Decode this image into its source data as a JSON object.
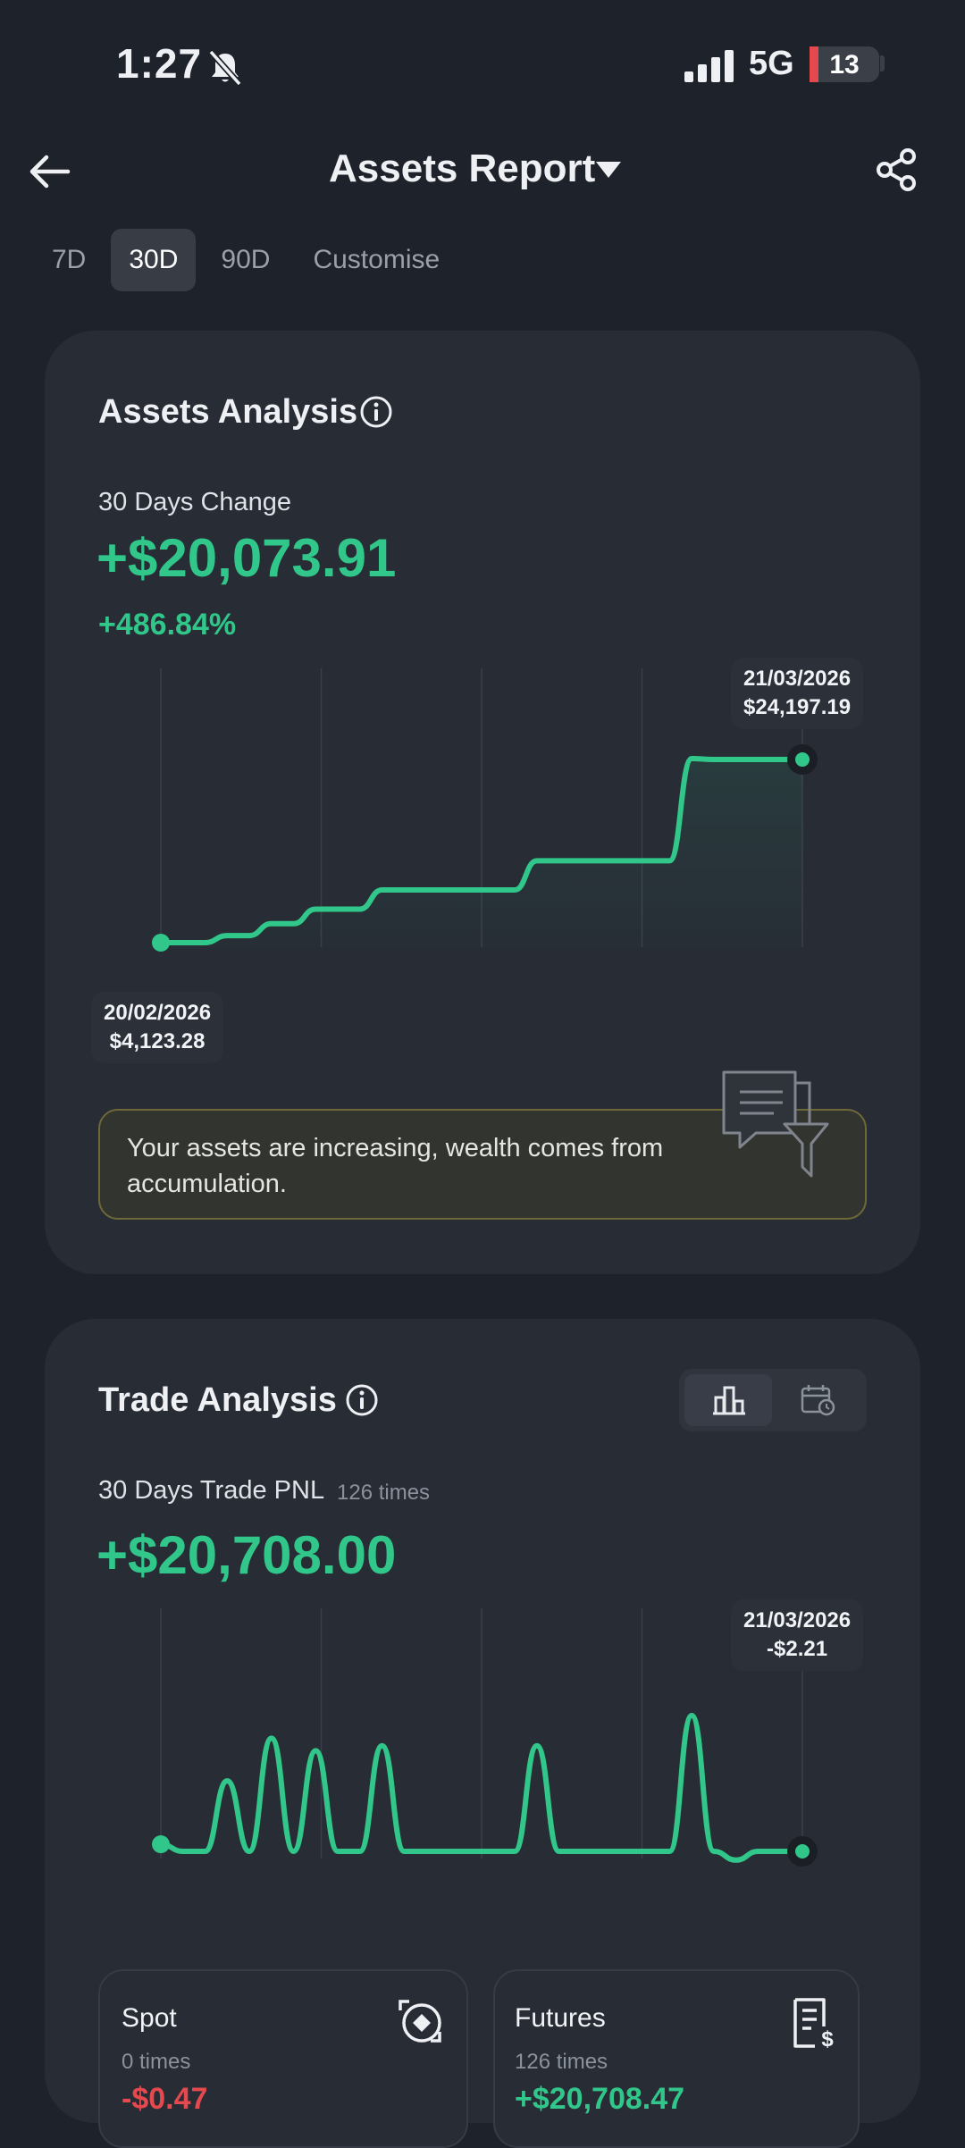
{
  "status": {
    "time": "1:27",
    "network": "5G",
    "battery": "13",
    "battery_level": 0.13
  },
  "header": {
    "title": "Assets Report",
    "tabs": [
      {
        "label": "7D",
        "active": false
      },
      {
        "label": "30D",
        "active": true
      },
      {
        "label": "90D",
        "active": false
      },
      {
        "label": "Customise",
        "active": false
      }
    ]
  },
  "assets_analysis": {
    "title": "Assets Analysis",
    "change_label": "30 Days Change",
    "change_value": "+$20,073.91",
    "change_percent": "+486.84%",
    "start_tooltip": {
      "date": "20/02/2026",
      "value": "$4,123.28"
    },
    "end_tooltip": {
      "date": "21/03/2026",
      "value": "$24,197.19"
    },
    "insight": "Your assets are increasing, wealth comes from accumulation."
  },
  "trade_analysis": {
    "title": "Trade Analysis",
    "pnl_label": "30 Days Trade PNL",
    "pnl_count": "126 times",
    "pnl_value": "+$20,708.00",
    "end_tooltip": {
      "date": "21/03/2026",
      "value": "-$2.21"
    },
    "spot": {
      "title": "Spot",
      "count": "0 times",
      "value": "-$0.47"
    },
    "futures": {
      "title": "Futures",
      "count": "126 times",
      "value": "+$20,708.47"
    }
  },
  "colors": {
    "accent_green": "#31c78a",
    "negative_red": "#e5484d"
  },
  "chart_data": [
    {
      "type": "line",
      "series": [
        {
          "values": [
            4123.28,
            4123.28,
            4123.28,
            4900,
            4900,
            6200,
            6200,
            7800,
            7800,
            7800,
            9900,
            9900,
            9900,
            9900,
            9900,
            9900,
            9900,
            13100,
            13100,
            13100,
            13100,
            13100,
            13100,
            13100,
            24300,
            24197.19,
            24197.19,
            24197.19,
            24197.19,
            24197.19
          ]
        }
      ],
      "x_start": "20/02/2026",
      "x_end": "21/03/2026",
      "grid": true
    },
    {
      "type": "line",
      "series": [
        {
          "values": [
            280,
            -2,
            -2,
            2800,
            -2,
            4500,
            -2,
            4000,
            -2,
            -2,
            4200,
            -2,
            -2,
            -2,
            -2,
            -2,
            -2,
            4200,
            -2,
            -2,
            -2,
            -2,
            -2,
            -2,
            5400,
            -2,
            -350,
            -2,
            -2,
            -2.21
          ]
        }
      ],
      "x_start": "20/02/2026",
      "x_end": "21/03/2026",
      "grid": true
    }
  ]
}
